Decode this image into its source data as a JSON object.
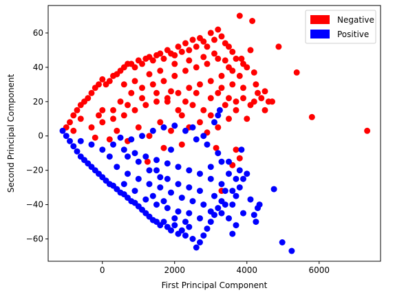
{
  "chart_data": {
    "type": "scatter",
    "title": "",
    "xlabel": "First Principal Component",
    "ylabel": "Second Principal Component",
    "xlim": [
      -1500,
      7700
    ],
    "ylim": [
      -73,
      76
    ],
    "xticks": [
      0,
      2000,
      4000,
      6000
    ],
    "yticks": [
      -60,
      -40,
      -20,
      0,
      20,
      40,
      60
    ],
    "grid": false,
    "legend_position": "upper right",
    "series": [
      {
        "name": "Negative",
        "color": "#ff0000",
        "points": [
          [
            -1000,
            5
          ],
          [
            -900,
            8
          ],
          [
            -800,
            12
          ],
          [
            -700,
            15
          ],
          [
            -600,
            18
          ],
          [
            -500,
            20
          ],
          [
            -400,
            22
          ],
          [
            -300,
            25
          ],
          [
            -200,
            28
          ],
          [
            -100,
            30
          ],
          [
            0,
            33
          ],
          [
            100,
            30
          ],
          [
            200,
            32
          ],
          [
            300,
            35
          ],
          [
            400,
            36
          ],
          [
            500,
            38
          ],
          [
            600,
            40
          ],
          [
            700,
            42
          ],
          [
            800,
            42
          ],
          [
            900,
            40
          ],
          [
            1000,
            44
          ],
          [
            1100,
            42
          ],
          [
            1200,
            45
          ],
          [
            1300,
            46
          ],
          [
            1400,
            44
          ],
          [
            1500,
            47
          ],
          [
            1600,
            48
          ],
          [
            1700,
            45
          ],
          [
            1800,
            50
          ],
          [
            1900,
            48
          ],
          [
            2000,
            47
          ],
          [
            2100,
            52
          ],
          [
            2200,
            49
          ],
          [
            2300,
            54
          ],
          [
            2400,
            50
          ],
          [
            2500,
            56
          ],
          [
            2600,
            52
          ],
          [
            2700,
            57
          ],
          [
            2800,
            55
          ],
          [
            2900,
            52
          ],
          [
            3000,
            60
          ],
          [
            3100,
            56
          ],
          [
            3200,
            62
          ],
          [
            3300,
            58
          ],
          [
            3400,
            54
          ],
          [
            3500,
            52
          ],
          [
            3600,
            49
          ],
          [
            3700,
            45
          ],
          [
            3800,
            70
          ],
          [
            3850,
            45
          ],
          [
            3900,
            42
          ],
          [
            4000,
            40
          ],
          [
            4100,
            50
          ],
          [
            4150,
            67
          ],
          [
            4200,
            37
          ],
          [
            4250,
            30
          ],
          [
            4300,
            25
          ],
          [
            4400,
            22
          ],
          [
            4500,
            26
          ],
          [
            4600,
            20
          ],
          [
            4700,
            20
          ],
          [
            4880,
            52
          ],
          [
            5380,
            37
          ],
          [
            5800,
            11
          ],
          [
            7330,
            3
          ],
          [
            -300,
            5
          ],
          [
            0,
            8
          ],
          [
            300,
            10
          ],
          [
            600,
            12
          ],
          [
            900,
            15
          ],
          [
            1200,
            18
          ],
          [
            1500,
            20
          ],
          [
            1800,
            22
          ],
          [
            2100,
            25
          ],
          [
            2400,
            28
          ],
          [
            2700,
            30
          ],
          [
            3000,
            32
          ],
          [
            3300,
            35
          ],
          [
            3600,
            30
          ],
          [
            3900,
            28
          ],
          [
            4100,
            18
          ],
          [
            3400,
            18
          ],
          [
            2800,
            15
          ],
          [
            2200,
            12
          ],
          [
            1600,
            8
          ],
          [
            1000,
            5
          ],
          [
            400,
            3
          ],
          [
            -800,
            3
          ],
          [
            500,
            20
          ],
          [
            800,
            25
          ],
          [
            1100,
            28
          ],
          [
            1400,
            30
          ],
          [
            1700,
            32
          ],
          [
            2000,
            35
          ],
          [
            2300,
            38
          ],
          [
            2600,
            40
          ],
          [
            2900,
            42
          ],
          [
            3200,
            45
          ],
          [
            3500,
            40
          ],
          [
            3800,
            35
          ],
          [
            3700,
            20
          ],
          [
            3500,
            10
          ],
          [
            3200,
            5
          ],
          [
            2900,
            2
          ],
          [
            2400,
            5
          ],
          [
            1900,
            3
          ],
          [
            1300,
            0
          ],
          [
            700,
            -3
          ],
          [
            200,
            -2
          ],
          [
            -200,
            -1
          ],
          [
            0,
            15
          ],
          [
            -600,
            10
          ],
          [
            3300,
            -32
          ],
          [
            3700,
            -8
          ],
          [
            3800,
            -13
          ],
          [
            3600,
            -17
          ],
          [
            3150,
            -7
          ],
          [
            2200,
            -5
          ],
          [
            1700,
            -7
          ],
          [
            1250,
            -15
          ],
          [
            1800,
            20
          ],
          [
            2100,
            15
          ],
          [
            2500,
            18
          ],
          [
            2700,
            8
          ],
          [
            3000,
            12
          ],
          [
            3200,
            25
          ],
          [
            3500,
            22
          ],
          [
            3700,
            15
          ],
          [
            4000,
            10
          ],
          [
            3900,
            22
          ],
          [
            4200,
            20
          ],
          [
            4500,
            15
          ],
          [
            600,
            30
          ],
          [
            900,
            32
          ],
          [
            1300,
            36
          ],
          [
            1600,
            38
          ],
          [
            2000,
            42
          ],
          [
            2400,
            44
          ],
          [
            2800,
            46
          ],
          [
            3100,
            48
          ],
          [
            3400,
            44
          ],
          [
            3600,
            38
          ],
          [
            3300,
            28
          ],
          [
            3000,
            22
          ],
          [
            2600,
            25
          ],
          [
            2300,
            20
          ],
          [
            1900,
            26
          ],
          [
            1500,
            25
          ],
          [
            1100,
            22
          ],
          [
            700,
            18
          ],
          [
            300,
            15
          ],
          [
            -100,
            12
          ]
        ]
      },
      {
        "name": "Positive",
        "color": "#0000ff",
        "points": [
          [
            -1100,
            3
          ],
          [
            -1000,
            0
          ],
          [
            -900,
            -3
          ],
          [
            -800,
            -6
          ],
          [
            -700,
            -9
          ],
          [
            -600,
            -12
          ],
          [
            -500,
            -14
          ],
          [
            -400,
            -16
          ],
          [
            -300,
            -18
          ],
          [
            -200,
            -20
          ],
          [
            -100,
            -22
          ],
          [
            0,
            -24
          ],
          [
            100,
            -26
          ],
          [
            200,
            -28
          ],
          [
            300,
            -29
          ],
          [
            400,
            -31
          ],
          [
            500,
            -33
          ],
          [
            600,
            -34
          ],
          [
            700,
            -36
          ],
          [
            800,
            -38
          ],
          [
            900,
            -39
          ],
          [
            1000,
            -41
          ],
          [
            1100,
            -43
          ],
          [
            1200,
            -45
          ],
          [
            1300,
            -47
          ],
          [
            1400,
            -49
          ],
          [
            1500,
            -50
          ],
          [
            1600,
            -52
          ],
          [
            1700,
            -50
          ],
          [
            1800,
            -53
          ],
          [
            1900,
            -55
          ],
          [
            2000,
            -52
          ],
          [
            2100,
            -57
          ],
          [
            2200,
            -55
          ],
          [
            2300,
            -58
          ],
          [
            2400,
            -53
          ],
          [
            2500,
            -60
          ],
          [
            2600,
            -65
          ],
          [
            2700,
            -62
          ],
          [
            2800,
            -58
          ],
          [
            2900,
            -54
          ],
          [
            3000,
            -50
          ],
          [
            3100,
            -46
          ],
          [
            3200,
            -42
          ],
          [
            3300,
            -38
          ],
          [
            3400,
            -40
          ],
          [
            3500,
            -48
          ],
          [
            3600,
            -57
          ],
          [
            3700,
            -52
          ],
          [
            3800,
            -30
          ],
          [
            3900,
            -25
          ],
          [
            4000,
            -22
          ],
          [
            4100,
            -37
          ],
          [
            4200,
            -46
          ],
          [
            4250,
            -50
          ],
          [
            4300,
            -42
          ],
          [
            4350,
            -40
          ],
          [
            4750,
            -31
          ],
          [
            4980,
            -62
          ],
          [
            5240,
            -67
          ],
          [
            300,
            -5
          ],
          [
            600,
            -8
          ],
          [
            900,
            -10
          ],
          [
            1200,
            -12
          ],
          [
            1500,
            -14
          ],
          [
            1800,
            -16
          ],
          [
            2100,
            -18
          ],
          [
            2400,
            -20
          ],
          [
            2700,
            -22
          ],
          [
            3000,
            -25
          ],
          [
            3300,
            -28
          ],
          [
            3600,
            -32
          ],
          [
            3800,
            -20
          ],
          [
            3500,
            -15
          ],
          [
            3200,
            -10
          ],
          [
            2900,
            -5
          ],
          [
            2600,
            -2
          ],
          [
            2300,
            3
          ],
          [
            2000,
            6
          ],
          [
            1700,
            5
          ],
          [
            1400,
            3
          ],
          [
            1100,
            0
          ],
          [
            800,
            -2
          ],
          [
            500,
            -1
          ],
          [
            0,
            -8
          ],
          [
            -300,
            -5
          ],
          [
            -600,
            -3
          ],
          [
            200,
            -12
          ],
          [
            400,
            -18
          ],
          [
            700,
            -22
          ],
          [
            1000,
            -25
          ],
          [
            1300,
            -28
          ],
          [
            1600,
            -30
          ],
          [
            1900,
            -33
          ],
          [
            2200,
            -36
          ],
          [
            2500,
            -38
          ],
          [
            2800,
            -40
          ],
          [
            3100,
            -35
          ],
          [
            3400,
            -32
          ],
          [
            3700,
            -35
          ],
          [
            3900,
            -45
          ],
          [
            3600,
            -40
          ],
          [
            3300,
            -45
          ],
          [
            3000,
            -44
          ],
          [
            2700,
            -48
          ],
          [
            2400,
            -45
          ],
          [
            2100,
            -44
          ],
          [
            1800,
            -42
          ],
          [
            1500,
            -40
          ],
          [
            1200,
            -37
          ],
          [
            900,
            -32
          ],
          [
            600,
            -28
          ],
          [
            1500,
            -20
          ],
          [
            1800,
            -25
          ],
          [
            2100,
            -28
          ],
          [
            2400,
            -30
          ],
          [
            2700,
            -32
          ],
          [
            3000,
            -18
          ],
          [
            3300,
            -15
          ],
          [
            3500,
            -22
          ],
          [
            3700,
            -25
          ],
          [
            3850,
            -8
          ],
          [
            3100,
            8
          ],
          [
            3200,
            12
          ],
          [
            3250,
            15
          ],
          [
            2800,
            0
          ],
          [
            2500,
            5
          ],
          [
            1900,
            -8
          ],
          [
            1000,
            -15
          ],
          [
            700,
            -12
          ],
          [
            1300,
            -20
          ],
          [
            1600,
            -24
          ],
          [
            1700,
            -38
          ],
          [
            2000,
            -48
          ],
          [
            2300,
            -50
          ],
          [
            1400,
            -35
          ]
        ]
      }
    ]
  }
}
